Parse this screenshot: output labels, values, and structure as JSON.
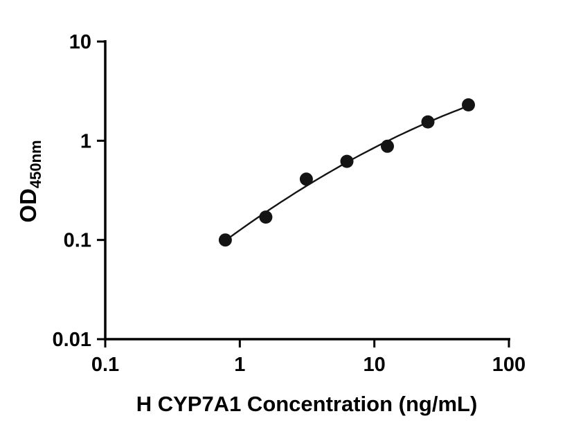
{
  "page": {
    "background_color": "#ffffff",
    "text_color": "#000000"
  },
  "chart_data": {
    "type": "scatter",
    "title": "",
    "xlabel": "H CYP7A1 Concentration (ng/mL)",
    "ylabel_main": "OD",
    "ylabel_sub": "450nm",
    "x_scale": "log",
    "y_scale": "log",
    "xlim": [
      0.1,
      100
    ],
    "ylim": [
      0.01,
      10
    ],
    "x_ticks": [
      0.1,
      1,
      10,
      100
    ],
    "x_tick_labels": [
      "0.1",
      "1",
      "10",
      "100"
    ],
    "y_ticks": [
      10,
      1,
      0.1,
      0.01
    ],
    "y_tick_labels": [
      "10",
      "1",
      "0.1",
      "0.01"
    ],
    "points": [
      {
        "x": 0.78,
        "y": 0.1
      },
      {
        "x": 1.56,
        "y": 0.17
      },
      {
        "x": 3.12,
        "y": 0.41
      },
      {
        "x": 6.25,
        "y": 0.62
      },
      {
        "x": 12.5,
        "y": 0.88
      },
      {
        "x": 25,
        "y": 1.55
      },
      {
        "x": 50,
        "y": 2.3
      }
    ],
    "trendline": {
      "style": "smooth fit through points",
      "x_start": 0.78,
      "x_end": 50
    },
    "marker_color": "#141414",
    "line_color": "#141414",
    "grid": false,
    "legend": null
  }
}
